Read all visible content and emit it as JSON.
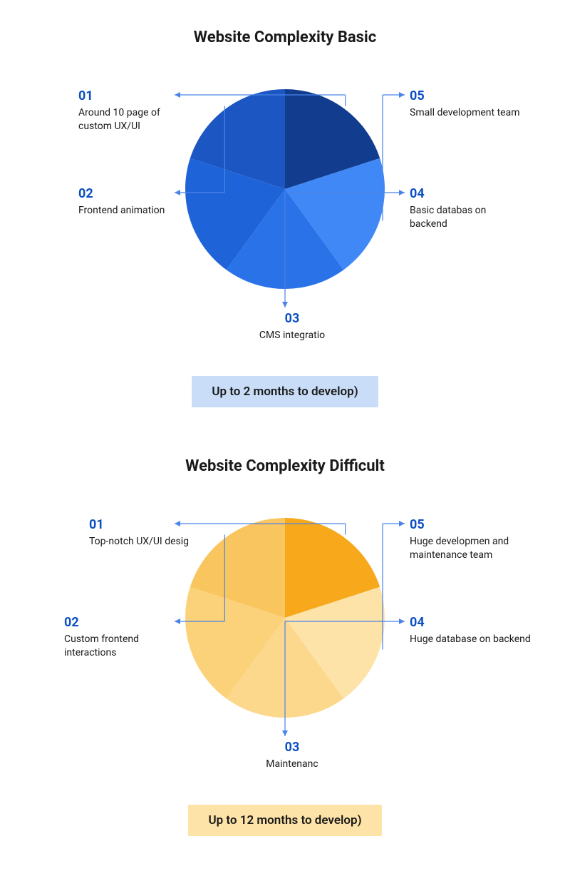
{
  "typography": {
    "title_fontsize": 22,
    "title_weight": 700,
    "label_fontsize": 14,
    "num_fontsize": 18,
    "num_weight": 700,
    "footer_fontsize": 17,
    "text_color": "#1a1a1a"
  },
  "leader_line_color": "#4a84e8",
  "charts": [
    {
      "id": "basic",
      "title": "Website Complexity Basic",
      "type": "pie",
      "radius": 140,
      "slice_value": 20,
      "num_color": "#0b4fc2",
      "slices": [
        {
          "num": "01",
          "text": "Around 10 page of custom UX/UI",
          "color": "#123d8f",
          "start": -90,
          "end": -18
        },
        {
          "num": "02",
          "text": "Frontend animation",
          "color": "#1b56c3",
          "start": -162,
          "end": -90
        },
        {
          "num": "03",
          "text": "CMS integratio",
          "color": "#1f63d9",
          "start": -234,
          "end": -162
        },
        {
          "num": "04",
          "text": "Basic databas on backend",
          "color": "#2a72e8",
          "start": 54,
          "end": 126
        },
        {
          "num": "05",
          "text": "Small development team",
          "color": "#3f88f5",
          "start": -18,
          "end": 54
        }
      ],
      "footer": {
        "text": "Up to 2 months to develop)",
        "bg": "#c9ddf8",
        "color": "#1a1a1a"
      }
    },
    {
      "id": "difficult",
      "title": "Website Complexity Difficult",
      "type": "pie",
      "radius": 140,
      "slice_value": 20,
      "num_color": "#0b4fc2",
      "slices": [
        {
          "num": "01",
          "text": "Top-notch UX/UI desig",
          "color": "#f7a81b",
          "start": -90,
          "end": -18
        },
        {
          "num": "02",
          "text": "Custom frontend interactions",
          "color": "#f9c55e",
          "start": -162,
          "end": -90
        },
        {
          "num": "03",
          "text": "Maintenanc",
          "color": "#fbd27a",
          "start": -234,
          "end": -162
        },
        {
          "num": "04",
          "text": "Huge database on backend",
          "color": "#fcd88c",
          "start": 54,
          "end": 126
        },
        {
          "num": "05",
          "text": "Huge developmen and maintenance team",
          "color": "#fde3a8",
          "start": -18,
          "end": 54
        }
      ],
      "footer": {
        "text": "Up to 12 months to develop)",
        "bg": "#fde3a8",
        "color": "#1a1a1a"
      }
    }
  ]
}
